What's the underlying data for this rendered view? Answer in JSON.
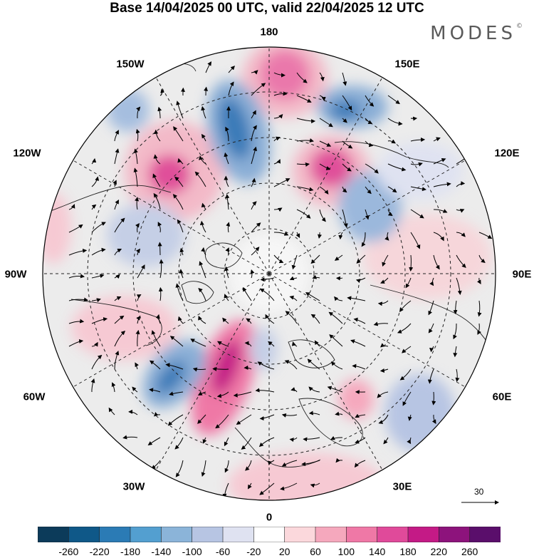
{
  "header": {
    "title": "Base 14/04/2025 00 UTC, valid 22/04/2025 12 UTC",
    "logo": "MODES",
    "logo_mark": "©"
  },
  "map": {
    "projection": "north-polar-stereographic",
    "longitude_labels": {
      "top": "180",
      "top_left": "150W",
      "top_right": "150E",
      "upper_left": "120W",
      "upper_right": "120E",
      "left": "90W",
      "right": "90E",
      "lower_left": "60W",
      "lower_right": "60E",
      "bottom_left": "30W",
      "bottom_right": "30E",
      "bottom": "0"
    },
    "reference_vector_label": "30",
    "anomaly_colors": {
      "positive_strong": "#c2187a",
      "positive_mid": "#ea78ab",
      "positive_weak": "#f6c9d3",
      "negative_strong": "#3a7ab8",
      "negative_mid": "#8aaed6",
      "negative_weak": "#d4d9ec",
      "neutral": "#ececec"
    }
  },
  "colorbar": {
    "ticks": [
      "-260",
      "-220",
      "-180",
      "-140",
      "-100",
      "-60",
      "-20",
      "20",
      "60",
      "100",
      "140",
      "180",
      "220",
      "260"
    ],
    "colors": [
      "#0c3b5a",
      "#0f5888",
      "#2b7bb5",
      "#539fd0",
      "#8bb4d9",
      "#b7c5e3",
      "#dfe2f1",
      "#ffffff",
      "#fbd8dc",
      "#f5a8bd",
      "#ef78a6",
      "#e04a9a",
      "#c41a86",
      "#8d137c",
      "#5a0e6b"
    ]
  }
}
